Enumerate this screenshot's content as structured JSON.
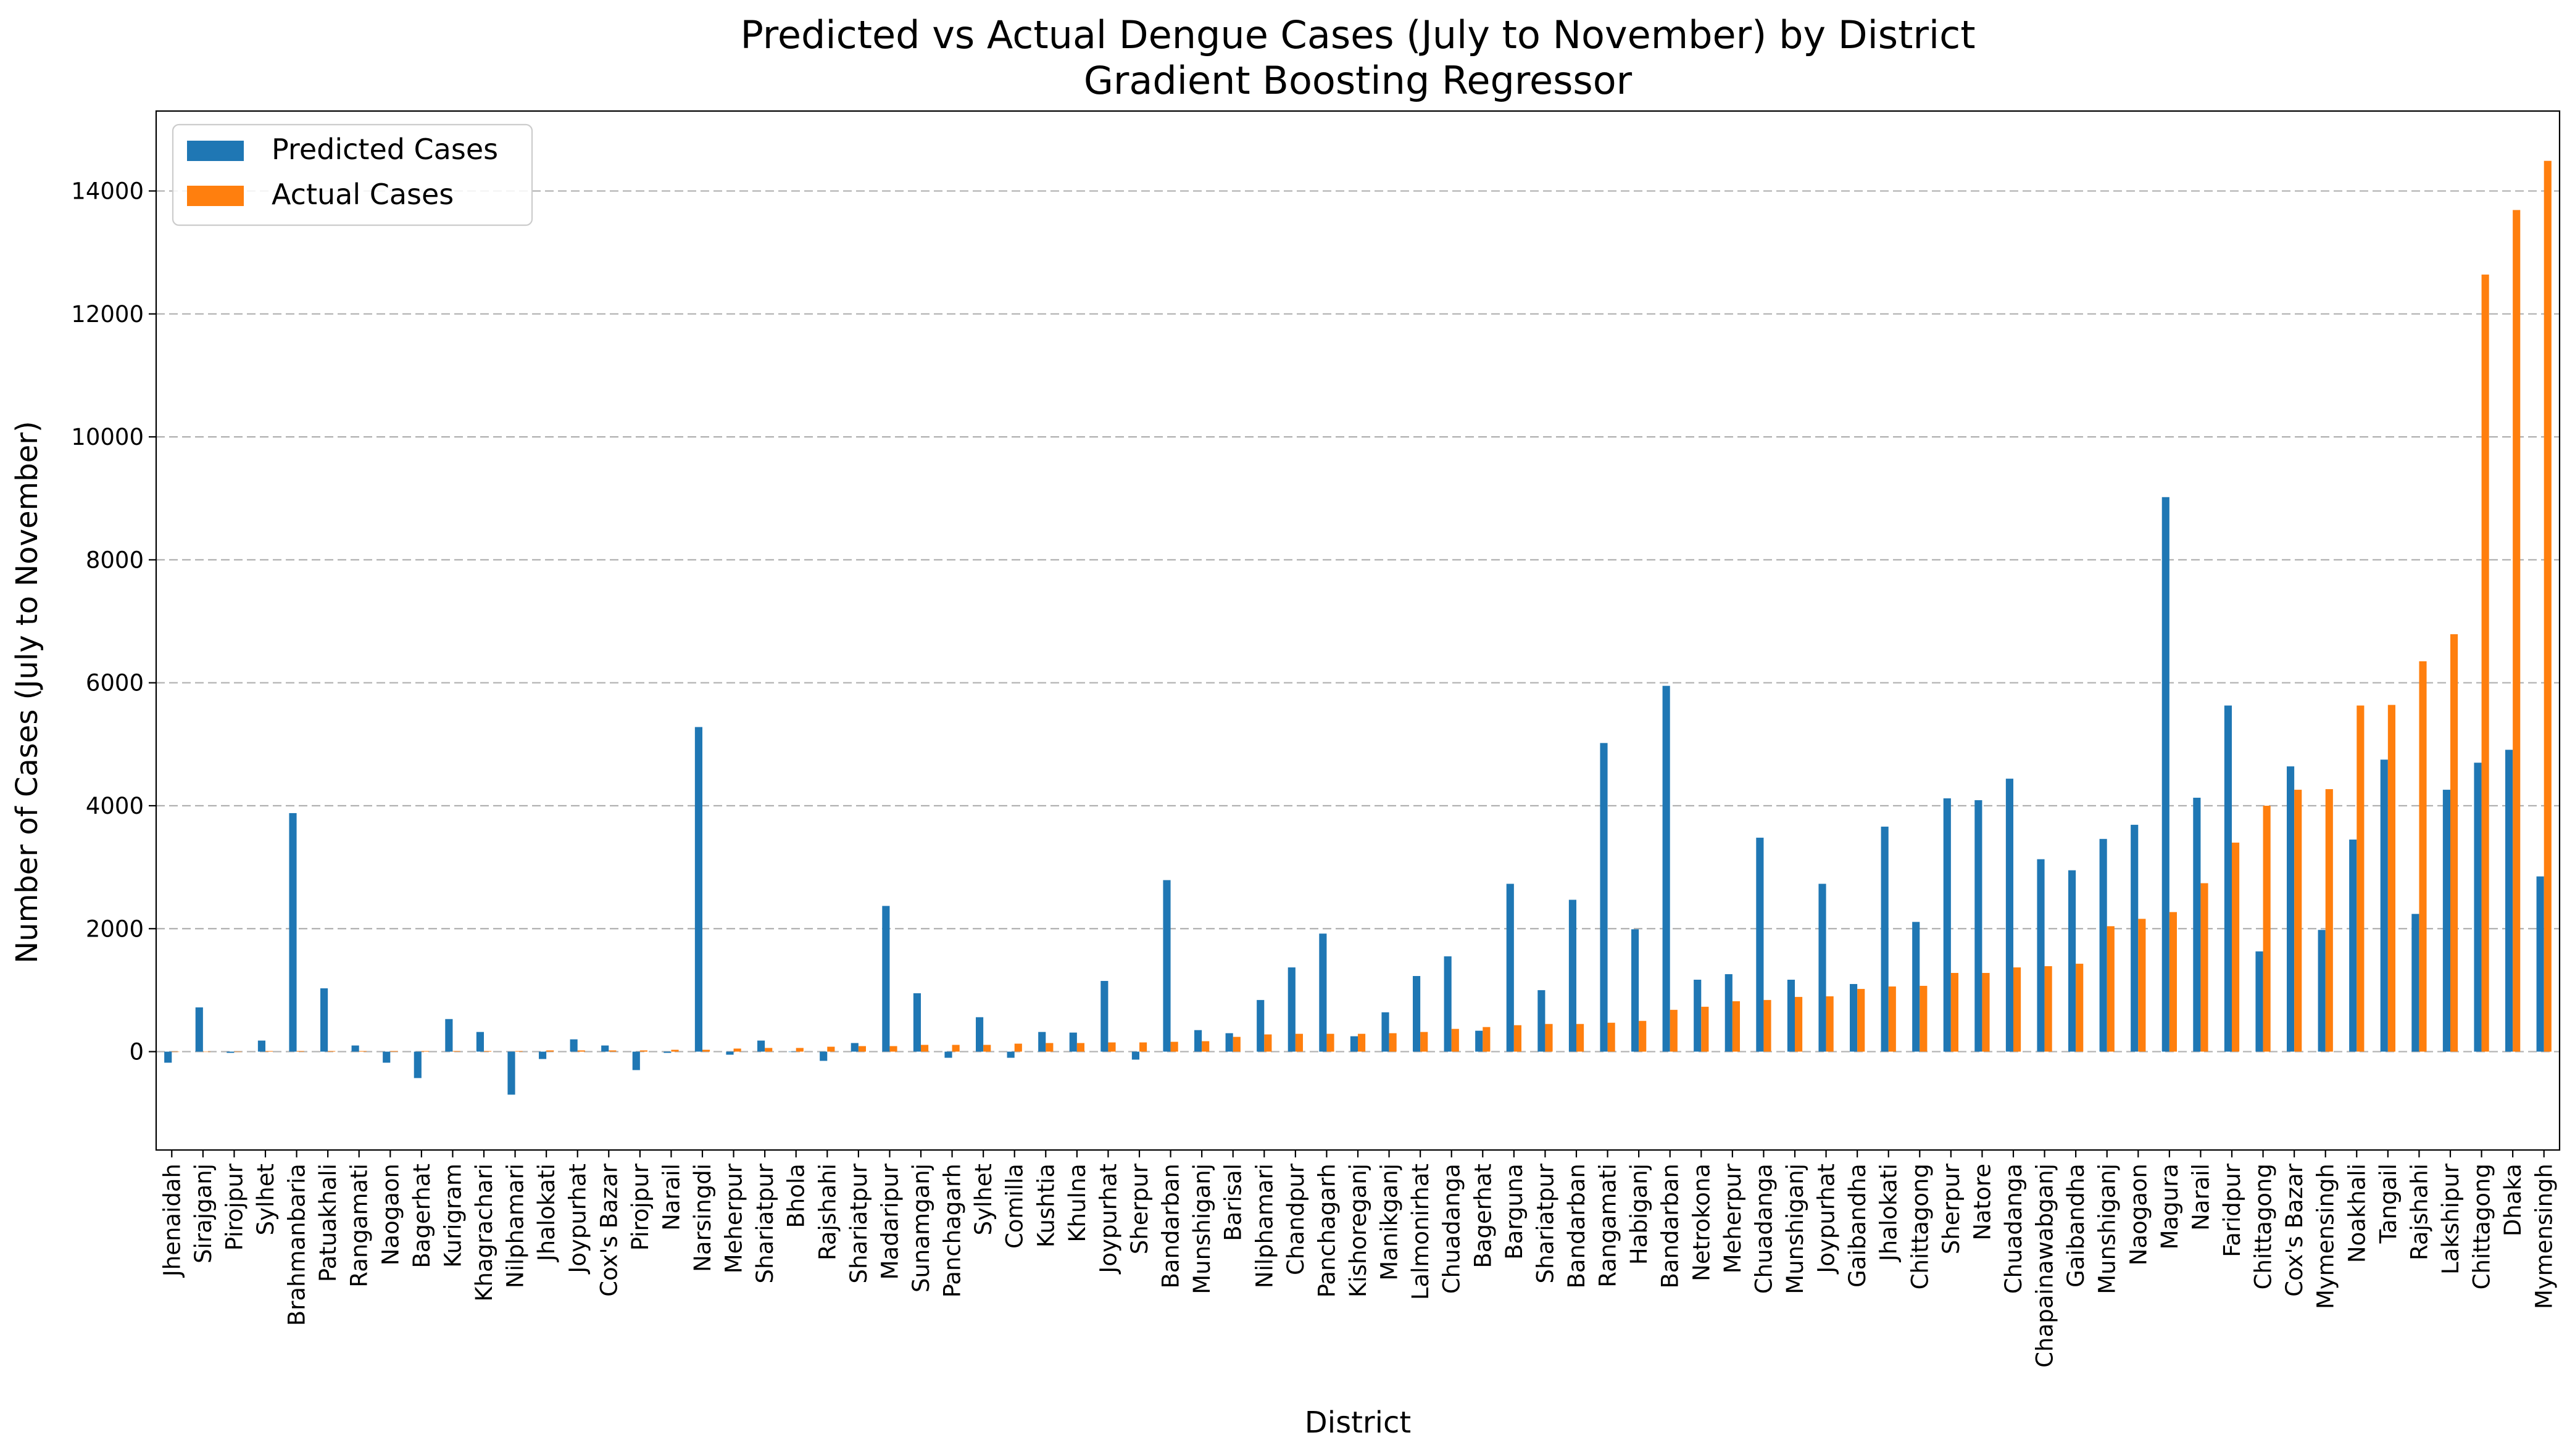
{
  "chart_data": {
    "type": "bar",
    "title": "Predicted vs Actual Dengue Cases (July to November) by District",
    "subtitle": "Gradient Boosting Regressor",
    "xlabel": "District",
    "ylabel": "Number of Cases (July to November)",
    "ylim": [
      -1600,
      15300
    ],
    "yticks": [
      0,
      2000,
      4000,
      6000,
      8000,
      10000,
      12000,
      14000
    ],
    "grid": "y-dashed",
    "legend_position": "top-left",
    "categories": [
      "Jhenaidah",
      "Sirajganj",
      "Pirojpur",
      "Sylhet",
      "Brahmanbaria",
      "Patuakhali",
      "Rangamati",
      "Naogaon",
      "Bagerhat",
      "Kurigram",
      "Khagrachari",
      "Nilphamari",
      "Jhalokati",
      "Joypurhat",
      "Cox's Bazar",
      "Pirojpur",
      "Narail",
      "Narsingdi",
      "Meherpur",
      "Shariatpur",
      "Bhola",
      "Rajshahi",
      "Shariatpur",
      "Madaripur",
      "Sunamganj",
      "Panchagarh",
      "Sylhet",
      "Comilla",
      "Kushtia",
      "Khulna",
      "Joypurhat",
      "Sherpur",
      "Bandarban",
      "Munshiganj",
      "Barisal",
      "Nilphamari",
      "Chandpur",
      "Panchagarh",
      "Kishoreganj",
      "Manikganj",
      "Lalmonirhat",
      "Chuadanga",
      "Bagerhat",
      "Barguna",
      "Shariatpur",
      "Bandarban",
      "Rangamati",
      "Habiganj",
      "Bandarban",
      "Netrokona",
      "Meherpur",
      "Chuadanga",
      "Munshiganj",
      "Joypurhat",
      "Gaibandha",
      "Jhalokati",
      "Chittagong",
      "Sherpur",
      "Natore",
      "Chuadanga",
      "Chapainawabganj",
      "Gaibandha",
      "Munshiganj",
      "Naogaon",
      "Magura",
      "Narail",
      "Faridpur",
      "Chittagong",
      "Cox's Bazar",
      "Mymensingh",
      "Noakhali",
      "Tangail",
      "Rajshahi",
      "Lakshipur",
      "Chittagong",
      "Dhaka",
      "Mymensingh"
    ],
    "series": [
      {
        "name": "Predicted Cases",
        "color": "#1f77b4",
        "values": [
          -180,
          720,
          -20,
          180,
          3880,
          1030,
          100,
          -180,
          -430,
          530,
          320,
          -700,
          -120,
          200,
          100,
          -300,
          -20,
          5280,
          -50,
          180,
          0,
          -150,
          140,
          2370,
          950,
          -100,
          560,
          -100,
          320,
          310,
          1150,
          -130,
          2790,
          350,
          300,
          840,
          1370,
          1920,
          250,
          640,
          1230,
          1550,
          340,
          2730,
          1000,
          2470,
          5020,
          1990,
          5950,
          1170,
          1260,
          3480,
          1170,
          2730,
          1100,
          3660,
          2110,
          4120,
          4090,
          4440,
          3130,
          2950,
          3460,
          3690,
          9020,
          4130,
          5630,
          1630,
          4640,
          1980,
          3450,
          4750,
          2240,
          4260,
          4700,
          4910,
          2850
        ]
      },
      {
        "name": "Actual Cases",
        "color": "#ff7f0e",
        "values": [
          0,
          0,
          0,
          10,
          10,
          10,
          10,
          10,
          10,
          10,
          10,
          10,
          20,
          20,
          20,
          20,
          30,
          30,
          50,
          60,
          60,
          80,
          90,
          90,
          110,
          110,
          110,
          130,
          140,
          140,
          150,
          150,
          160,
          170,
          240,
          280,
          290,
          290,
          290,
          300,
          320,
          370,
          400,
          430,
          450,
          450,
          470,
          500,
          680,
          730,
          820,
          840,
          890,
          900,
          1020,
          1060,
          1070,
          1280,
          1280,
          1370,
          1390,
          1430,
          2040,
          2160,
          2270,
          2740,
          3400,
          4000,
          4260,
          4270,
          5630,
          5640,
          6350,
          6790,
          12640,
          13690,
          14490
        ]
      }
    ]
  }
}
